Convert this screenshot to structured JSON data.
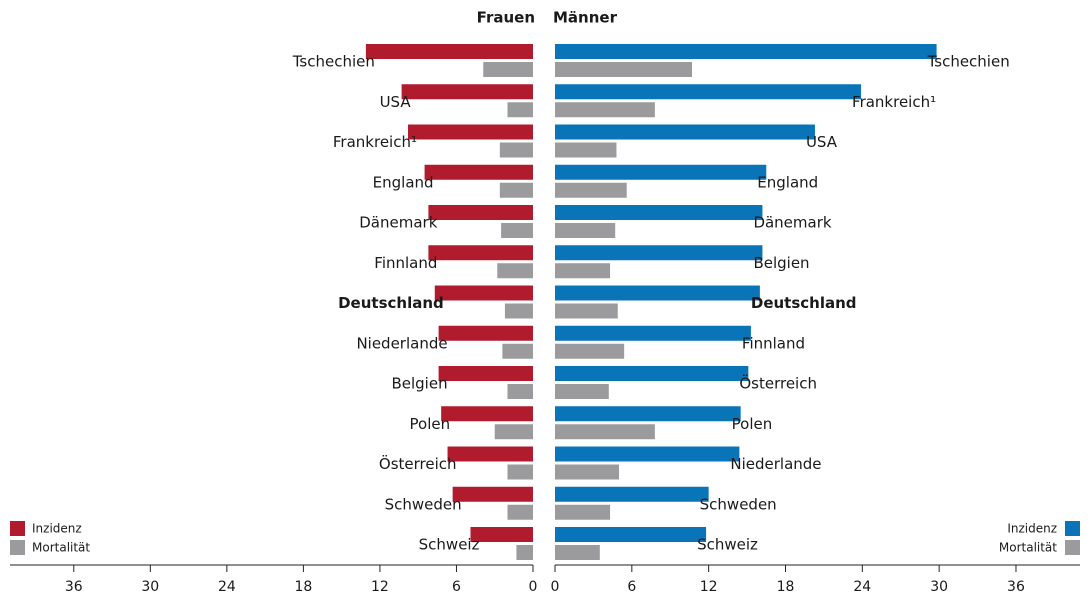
{
  "chart_data": [
    {
      "type": "bar",
      "orientation": "horizontal",
      "title": "Frauen",
      "x_reversed": true,
      "highlight": "Deutschland",
      "legend": "lower left",
      "categories": [
        "Tschechien",
        "USA",
        "Frankreich¹",
        "England",
        "Dänemark",
        "Finnland",
        "Deutschland",
        "Niederlande",
        "Belgien",
        "Polen",
        "Österreich",
        "Schweden",
        "Schweiz"
      ],
      "series": [
        {
          "name": "Inzidenz",
          "color": "#b01c2e",
          "values": [
            13.1,
            10.3,
            9.8,
            8.5,
            8.2,
            8.2,
            7.7,
            7.4,
            7.4,
            7.2,
            6.7,
            6.3,
            4.9
          ]
        },
        {
          "name": "Mortalität",
          "color": "#9b9b9d",
          "values": [
            3.9,
            2.0,
            2.6,
            2.6,
            2.5,
            2.8,
            2.2,
            2.4,
            2.0,
            3.0,
            2.0,
            2.0,
            1.3
          ]
        }
      ],
      "xlim": [
        0,
        41
      ],
      "xticks": [
        0,
        6,
        12,
        18,
        24,
        30,
        36
      ]
    },
    {
      "type": "bar",
      "orientation": "horizontal",
      "title": "Männer",
      "x_reversed": false,
      "highlight": "Deutschland",
      "legend": "lower right",
      "categories": [
        "Tschechien",
        "Frankreich¹",
        "USA",
        "England",
        "Dänemark",
        "Belgien",
        "Deutschland",
        "Finnland",
        "Österreich",
        "Polen",
        "Niederlande",
        "Schweden",
        "Schweiz"
      ],
      "series": [
        {
          "name": "Inzidenz",
          "color": "#0a74b8",
          "values": [
            29.8,
            23.9,
            20.3,
            16.5,
            16.2,
            16.2,
            16.0,
            15.3,
            15.1,
            14.5,
            14.4,
            12.0,
            11.8
          ]
        },
        {
          "name": "Mortalität",
          "color": "#9b9b9d",
          "values": [
            10.7,
            7.8,
            4.8,
            5.6,
            4.7,
            4.3,
            4.9,
            5.4,
            4.2,
            7.8,
            5.0,
            4.3,
            3.5
          ]
        }
      ],
      "xlim": [
        0,
        41
      ],
      "xticks": [
        0,
        6,
        12,
        18,
        24,
        30,
        36
      ]
    }
  ]
}
